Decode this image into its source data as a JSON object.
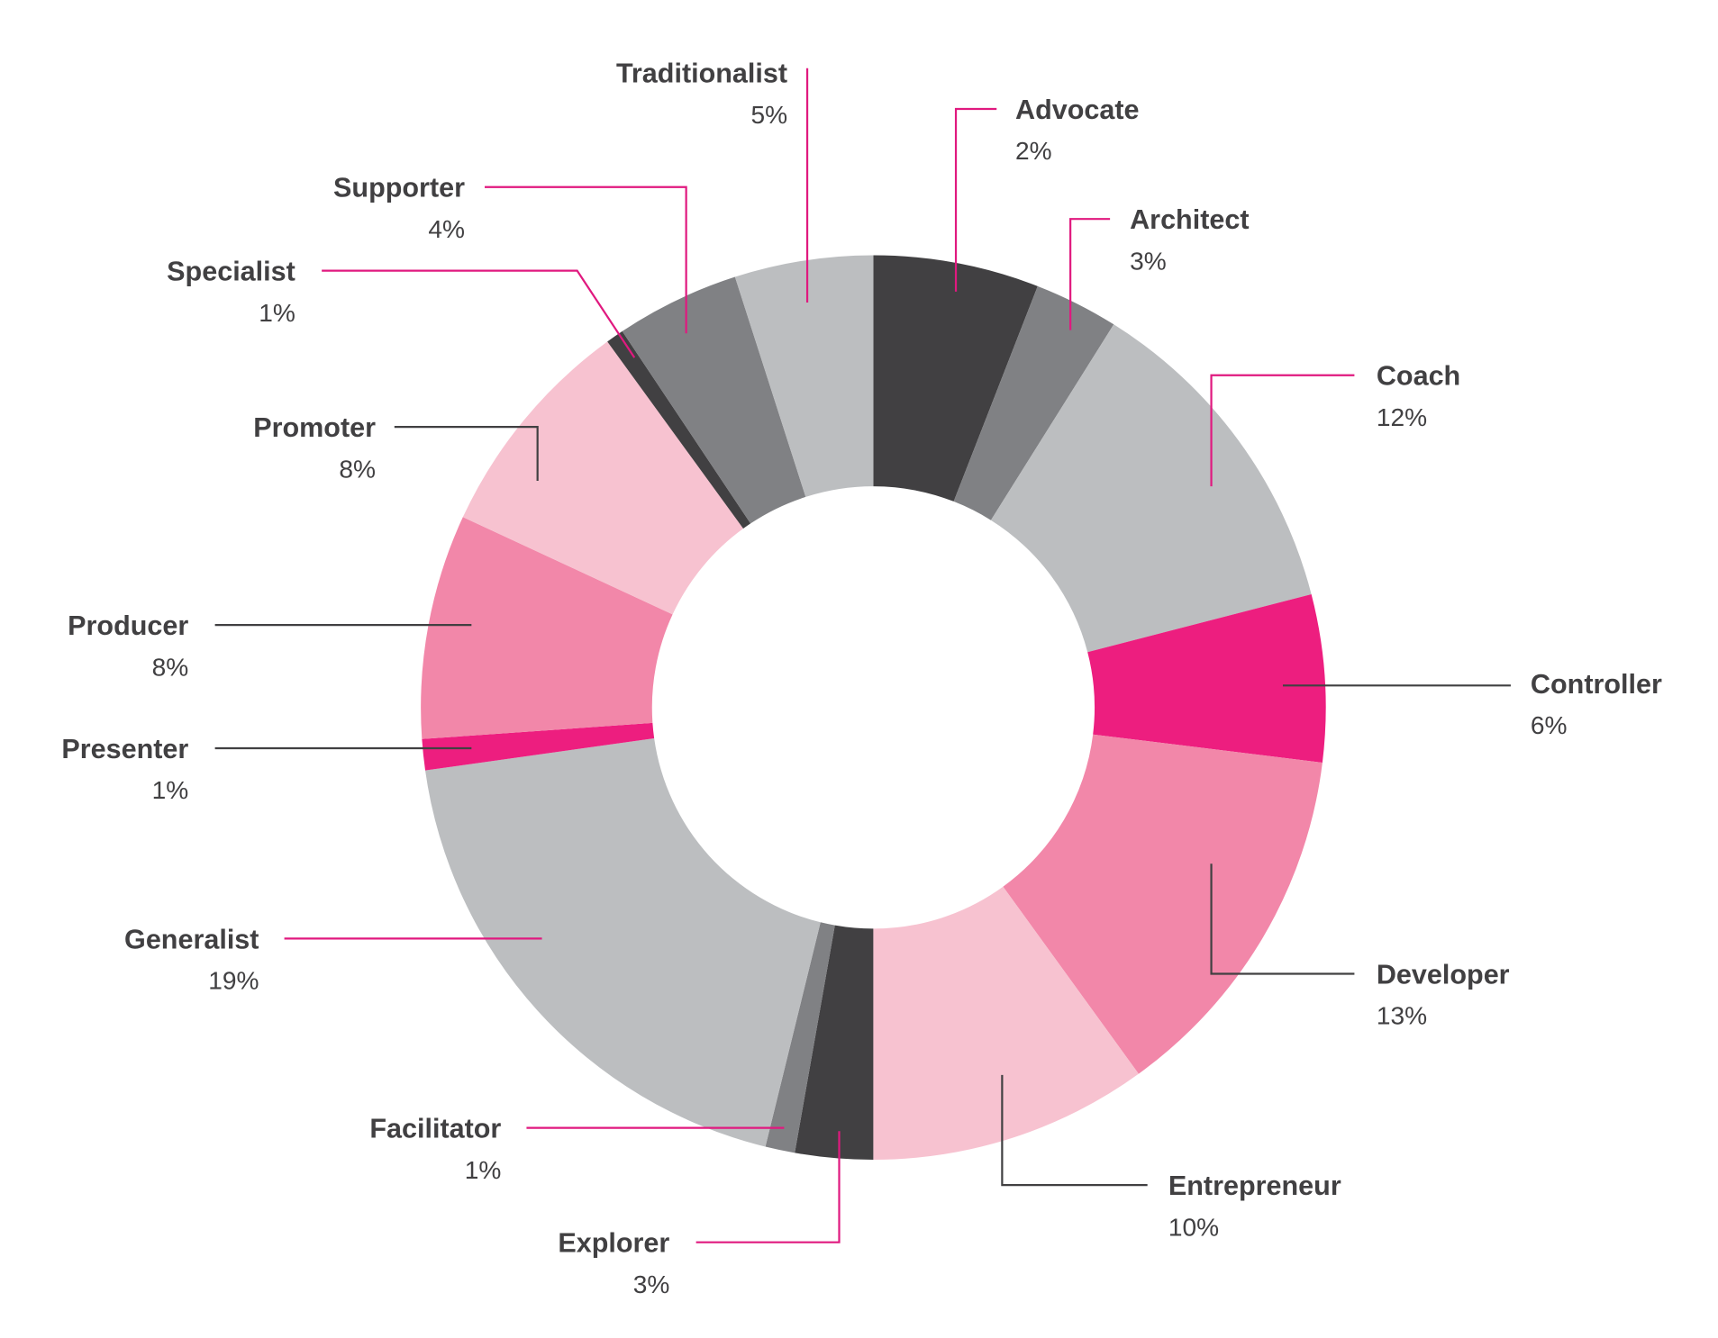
{
  "chart_data": {
    "type": "pie",
    "variant": "donut",
    "legend": "none",
    "slices": [
      {
        "label": "Advocate",
        "value": 2,
        "value_label": "2%",
        "color": "#414042",
        "leader_color": "#e0197f"
      },
      {
        "label": "Architect",
        "value": 3,
        "value_label": "3%",
        "color": "#808184",
        "leader_color": "#e0197f"
      },
      {
        "label": "Coach",
        "value": 12,
        "value_label": "12%",
        "color": "#bcbec0",
        "leader_color": "#e0197f"
      },
      {
        "label": "Controller",
        "value": 6,
        "value_label": "6%",
        "color": "#ed1e7f",
        "leader_color": "#414042"
      },
      {
        "label": "Developer",
        "value": 13,
        "value_label": "13%",
        "color": "#f287a9",
        "leader_color": "#414042"
      },
      {
        "label": "Entrepreneur",
        "value": 10,
        "value_label": "10%",
        "color": "#f7c2d0",
        "leader_color": "#414042"
      },
      {
        "label": "Explorer",
        "value": 3,
        "value_label": "3%",
        "color": "#414042",
        "leader_color": "#e0197f"
      },
      {
        "label": "Facilitator",
        "value": 1,
        "value_label": "1%",
        "color": "#808184",
        "leader_color": "#e0197f"
      },
      {
        "label": "Generalist",
        "value": 19,
        "value_label": "19%",
        "color": "#bcbec0",
        "leader_color": "#e0197f"
      },
      {
        "label": "Presenter",
        "value": 1,
        "value_label": "1%",
        "color": "#ed1e7f",
        "leader_color": "#414042"
      },
      {
        "label": "Producer",
        "value": 8,
        "value_label": "8%",
        "color": "#f287a9",
        "leader_color": "#414042"
      },
      {
        "label": "Promoter",
        "value": 8,
        "value_label": "8%",
        "color": "#f7c2d0",
        "leader_color": "#414042"
      },
      {
        "label": "Specialist",
        "value": 1,
        "value_label": "1%",
        "color": "#414042",
        "leader_color": "#e0197f"
      },
      {
        "label": "Supporter",
        "value": 4,
        "value_label": "4%",
        "color": "#808184",
        "leader_color": "#e0197f"
      },
      {
        "label": "Traditionalist",
        "value": 5,
        "value_label": "5%",
        "color": "#bcbec0",
        "leader_color": "#e0197f"
      }
    ]
  }
}
